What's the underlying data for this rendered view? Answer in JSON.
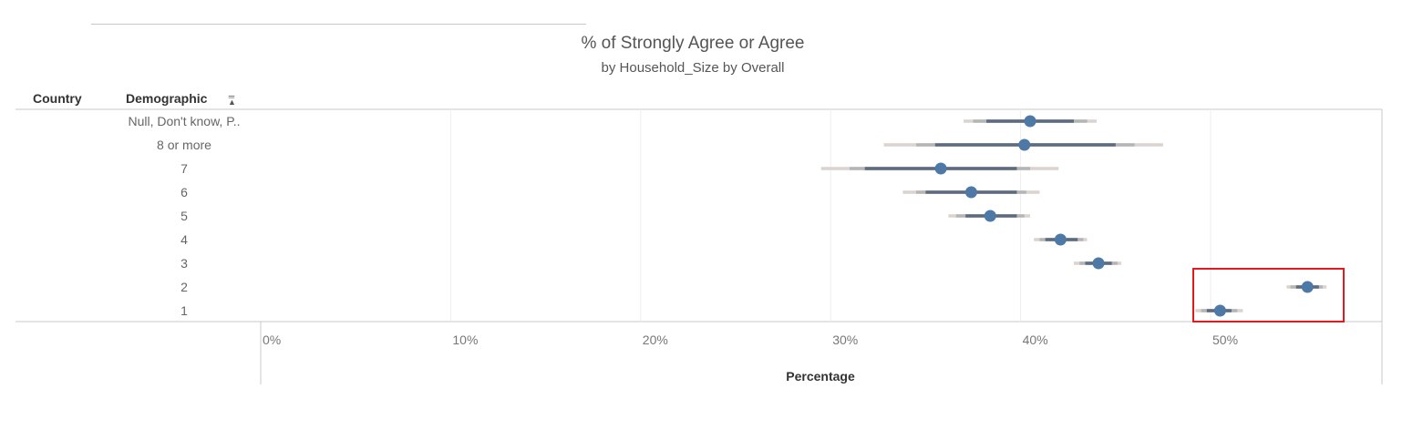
{
  "chart_data": {
    "type": "scatter",
    "title": "% of Strongly Agree or Agree",
    "subtitle": "by Household_Size by Overall",
    "row_headers": [
      "Country",
      "Demographic"
    ],
    "xlabel": "Percentage",
    "xlim": [
      0,
      0.59
    ],
    "x_ticks": [
      {
        "value": 0.0,
        "label": "0%"
      },
      {
        "value": 0.1,
        "label": "10%"
      },
      {
        "value": 0.2,
        "label": "20%"
      },
      {
        "value": 0.3,
        "label": "30%"
      },
      {
        "value": 0.4,
        "label": "40%"
      },
      {
        "value": 0.5,
        "label": "50%"
      }
    ],
    "categories": [
      "Null, Don't know, P..",
      "8 or more",
      "7",
      "6",
      "5",
      "4",
      "3",
      "2",
      "1"
    ],
    "points": [
      {
        "category": "Null, Don't know, P..",
        "value": 0.405,
        "inner": [
          0.382,
          0.428
        ],
        "mid": [
          0.375,
          0.435
        ],
        "outer": [
          0.37,
          0.44
        ]
      },
      {
        "category": "8 or more",
        "value": 0.402,
        "inner": [
          0.355,
          0.45
        ],
        "mid": [
          0.345,
          0.46
        ],
        "outer": [
          0.328,
          0.475
        ]
      },
      {
        "category": "7",
        "value": 0.358,
        "inner": [
          0.318,
          0.398
        ],
        "mid": [
          0.31,
          0.405
        ],
        "outer": [
          0.295,
          0.42
        ]
      },
      {
        "category": "6",
        "value": 0.374,
        "inner": [
          0.35,
          0.398
        ],
        "mid": [
          0.345,
          0.403
        ],
        "outer": [
          0.338,
          0.41
        ]
      },
      {
        "category": "5",
        "value": 0.384,
        "inner": [
          0.371,
          0.398
        ],
        "mid": [
          0.366,
          0.402
        ],
        "outer": [
          0.362,
          0.405
        ]
      },
      {
        "category": "4",
        "value": 0.421,
        "inner": [
          0.413,
          0.43
        ],
        "mid": [
          0.41,
          0.433
        ],
        "outer": [
          0.407,
          0.435
        ]
      },
      {
        "category": "3",
        "value": 0.441,
        "inner": [
          0.434,
          0.448
        ],
        "mid": [
          0.431,
          0.451
        ],
        "outer": [
          0.428,
          0.453
        ]
      },
      {
        "category": "2",
        "value": 0.551,
        "inner": [
          0.545,
          0.557
        ],
        "mid": [
          0.542,
          0.559
        ],
        "outer": [
          0.54,
          0.561
        ]
      },
      {
        "category": "1",
        "value": 0.505,
        "inner": [
          0.498,
          0.511
        ],
        "mid": [
          0.495,
          0.514
        ],
        "outer": [
          0.492,
          0.517
        ]
      }
    ],
    "grid": true,
    "highlight": {
      "categories": [
        "2",
        "1"
      ],
      "color": "#e31a1c"
    },
    "colors": {
      "point": "#4e79a7",
      "inner_bar": "#5b6b82",
      "mid_bar": "#b5b5b5",
      "outer_bar": "#dcd3cf",
      "grid": "#eeeeee",
      "axis": "#c8c8c8",
      "tick_text": "#777777",
      "category_text": "#666666"
    }
  }
}
